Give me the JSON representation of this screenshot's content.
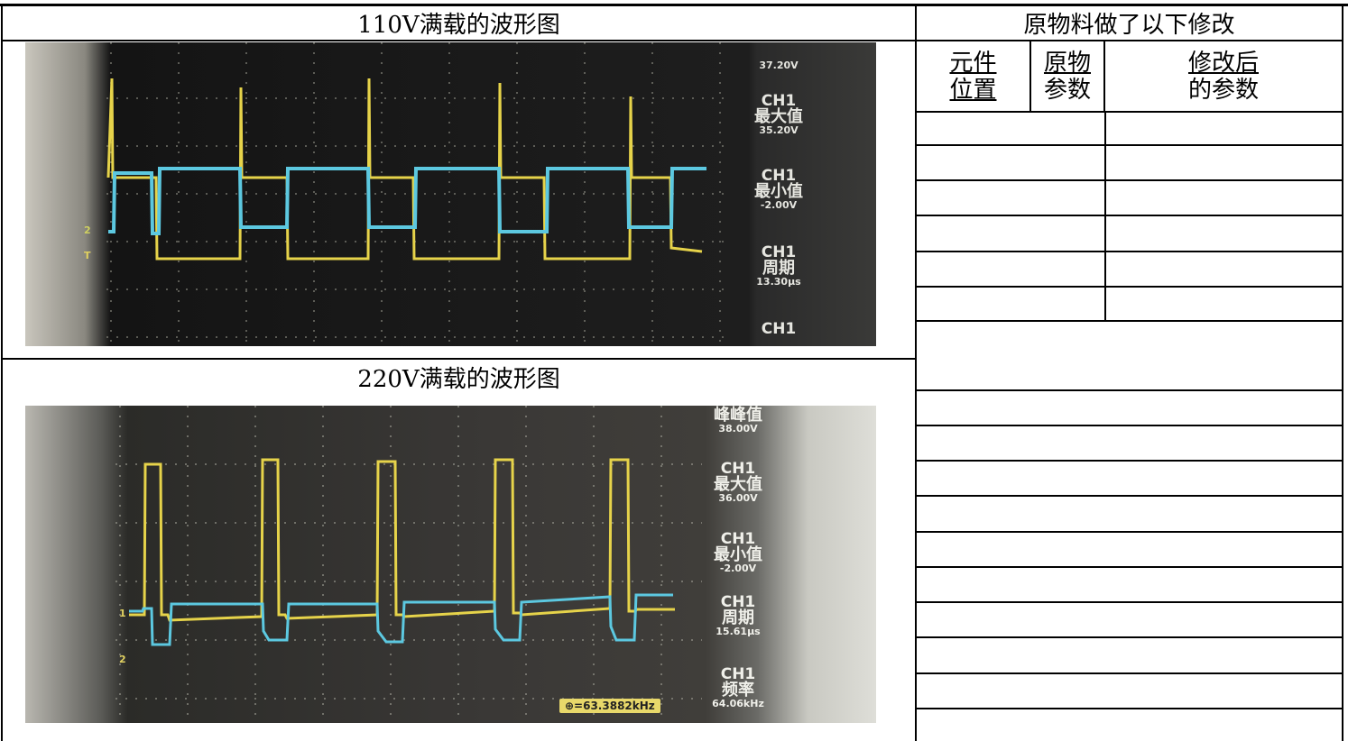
{
  "left": {
    "wave110_title": "110V满载的波形图",
    "wave220_title": "220V满载的波形图"
  },
  "right": {
    "heading": "原物料做了以下修改",
    "col_headers": [
      {
        "line1": "元件",
        "line2": "位置"
      },
      {
        "line1": "原物",
        "line2": "参数"
      },
      {
        "line1": "修改后",
        "line2": "的参数"
      }
    ]
  },
  "scope1": {
    "channel_marks": [
      "2",
      "T"
    ],
    "readouts": [
      {
        "label1": "",
        "label2": "",
        "value": "37.20V"
      },
      {
        "label1": "CH1",
        "label2": "最大值",
        "value": "35.20V"
      },
      {
        "label1": "CH1",
        "label2": "最小值",
        "value": "-2.00V"
      },
      {
        "label1": "CH1",
        "label2": "周期",
        "value": "13.30μs"
      },
      {
        "label1": "CH1",
        "label2": "",
        "value": ""
      }
    ]
  },
  "scope2": {
    "channel_marks": [
      "1",
      "2"
    ],
    "readouts": [
      {
        "label1": "",
        "label2": "峰峰值",
        "value": "38.00V"
      },
      {
        "label1": "CH1",
        "label2": "最大值",
        "value": "36.00V"
      },
      {
        "label1": "CH1",
        "label2": "最小值",
        "value": "-2.00V"
      },
      {
        "label1": "CH1",
        "label2": "周期",
        "value": "15.61μs"
      },
      {
        "label1": "CH1",
        "label2": "频率",
        "value": "64.06kHz"
      }
    ],
    "cursor_freq": "⊕=63.3882kHz"
  },
  "colors": {
    "ch1_yellow": "#e6d34a",
    "ch2_cyan": "#5cc8e0"
  }
}
